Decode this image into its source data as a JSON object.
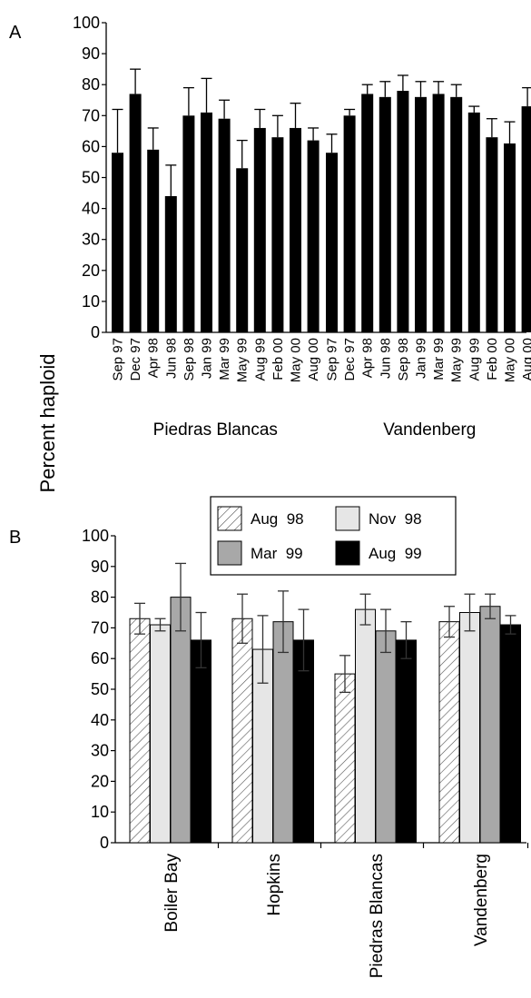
{
  "figure": {
    "ylabel": "Percent haploid"
  },
  "chart_data": [
    {
      "panel_label": "A",
      "type": "bar",
      "ylim": [
        0,
        100
      ],
      "yticks": [
        0,
        10,
        20,
        30,
        40,
        50,
        60,
        70,
        80,
        90,
        100
      ],
      "grid": false,
      "error_bars": "upper",
      "bar_color": "#000000",
      "groups": [
        {
          "name": "Piedras Blancas",
          "categories": [
            "Sep 97",
            "Dec 97",
            "Apr 98",
            "Jun 98",
            "Sep 98",
            "Jan 99",
            "Mar 99",
            "May 99",
            "Aug 99",
            "Feb 00",
            "May 00",
            "Aug 00"
          ],
          "values": [
            58,
            77,
            59,
            44,
            70,
            71,
            69,
            53,
            66,
            63,
            66,
            62
          ],
          "errors": [
            14,
            8,
            7,
            10,
            9,
            11,
            6,
            9,
            6,
            7,
            8,
            4
          ]
        },
        {
          "name": "Vandenberg",
          "categories": [
            "Sep 97",
            "Dec 97",
            "Apr 98",
            "Jun 98",
            "Sep 98",
            "Jan 99",
            "Mar 99",
            "May 99",
            "Aug 99",
            "Feb 00",
            "May 00",
            "Aug 00"
          ],
          "values": [
            58,
            70,
            77,
            76,
            78,
            76,
            77,
            76,
            71,
            63,
            61,
            73
          ],
          "errors": [
            6,
            2,
            3,
            5,
            5,
            5,
            4,
            4,
            2,
            6,
            7,
            6
          ]
        }
      ]
    },
    {
      "panel_label": "B",
      "type": "bar",
      "ylim": [
        0,
        100
      ],
      "yticks": [
        0,
        10,
        20,
        30,
        40,
        50,
        60,
        70,
        80,
        90,
        100
      ],
      "grid": false,
      "legend": "top-center",
      "categories": [
        "Boiler Bay",
        "Hopkins",
        "Piedras Blancas",
        "Vandenberg"
      ],
      "series": [
        {
          "name": "Aug  98",
          "fill": "hatch",
          "color": "#ffffff",
          "values": [
            73,
            73,
            55,
            72
          ],
          "errors": [
            5,
            8,
            6,
            5
          ]
        },
        {
          "name": "Nov  98",
          "fill": "solid",
          "color": "#e6e6e6",
          "values": [
            71,
            63,
            76,
            75
          ],
          "errors": [
            2,
            11,
            5,
            6
          ]
        },
        {
          "name": "Mar  99",
          "fill": "solid",
          "color": "#a8a8a8",
          "values": [
            80,
            72,
            69,
            77
          ],
          "errors": [
            11,
            10,
            7,
            4
          ]
        },
        {
          "name": "Aug  99",
          "fill": "solid",
          "color": "#000000",
          "values": [
            66,
            66,
            66,
            71
          ],
          "errors": [
            9,
            10,
            6,
            3
          ]
        }
      ]
    }
  ]
}
